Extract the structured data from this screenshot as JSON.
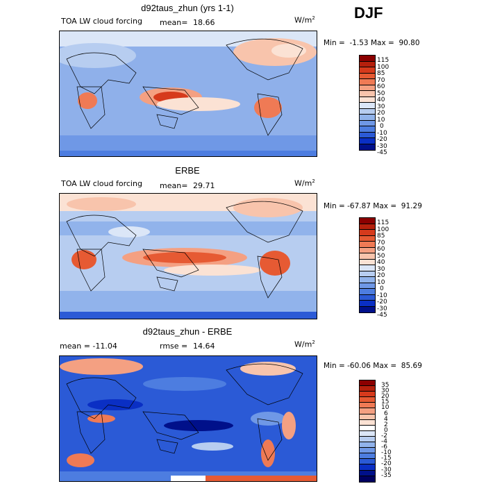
{
  "season": "DJF",
  "panels": [
    {
      "title": "d92taus_zhun (yrs 1-1)",
      "left_label": "TOA LW cloud forcing",
      "stat_label": "mean=",
      "stat_value": "18.66",
      "units": "W/m",
      "units_sup": "2",
      "minmax": "Min =  -1.53 Max =  90.80",
      "levels": [
        "115",
        "100",
        "85",
        "70",
        "60",
        "50",
        "40",
        "30",
        "20",
        "10",
        "0",
        "-10",
        "-20",
        "-30",
        "-45"
      ],
      "colors": [
        "#8b0000",
        "#b5200c",
        "#d63a1c",
        "#e65a33",
        "#ef7a55",
        "#f4a082",
        "#f8c4ac",
        "#fbe2d4",
        "#dbe6f7",
        "#b7cdf0",
        "#91b3eb",
        "#6f98e6",
        "#4d7de0",
        "#2b5ad6",
        "#0a2fc4",
        "#00108a"
      ]
    },
    {
      "title": "ERBE",
      "left_label": "TOA LW cloud forcing",
      "stat_label": "mean=",
      "stat_value": "29.71",
      "units": "W/m",
      "units_sup": "2",
      "minmax": "Min = -67.87 Max =  91.29",
      "levels": [
        "115",
        "100",
        "85",
        "70",
        "60",
        "50",
        "40",
        "30",
        "20",
        "10",
        "0",
        "-10",
        "-20",
        "-30",
        "-45"
      ],
      "colors": [
        "#8b0000",
        "#b5200c",
        "#d63a1c",
        "#e65a33",
        "#ef7a55",
        "#f4a082",
        "#f8c4ac",
        "#fbe2d4",
        "#dbe6f7",
        "#b7cdf0",
        "#91b3eb",
        "#6f98e6",
        "#4d7de0",
        "#2b5ad6",
        "#0a2fc4",
        "#00108a"
      ]
    },
    {
      "title": "d92taus_zhun - ERBE",
      "left_label": "mean = -11.04",
      "stat_label": "rmse =",
      "stat_value": "14.64",
      "units": "W/m",
      "units_sup": "2",
      "minmax": "Min = -60.06 Max =  85.69",
      "levels": [
        "35",
        "30",
        "20",
        "15",
        "10",
        "6",
        "4",
        "2",
        "0",
        "-2",
        "-4",
        "-6",
        "-10",
        "-15",
        "-20",
        "-30",
        "-35"
      ],
      "colors": [
        "#8b0000",
        "#b5200c",
        "#d63a1c",
        "#e65a33",
        "#ef7a55",
        "#f4a082",
        "#f8c4ac",
        "#fbe2d4",
        "#ffffff",
        "#dbe6f7",
        "#b7cdf0",
        "#91b3eb",
        "#6f98e6",
        "#4d7de0",
        "#2b5ad6",
        "#0a2fc4",
        "#00108a",
        "#000060"
      ]
    }
  ]
}
